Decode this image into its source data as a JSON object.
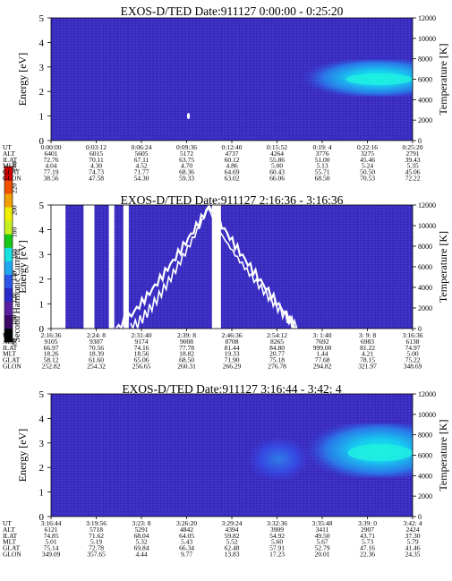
{
  "figure": {
    "colorbar": {
      "title": "Second Harmonic Current",
      "ticks": [
        "80",
        "100",
        "120",
        "140",
        "160",
        "180",
        "200",
        "220",
        "240"
      ],
      "colors": [
        "#000000",
        "#3a0a66",
        "#5a1fa0",
        "#2a2ac8",
        "#2f55e6",
        "#1fa8f0",
        "#18e0e0",
        "#18c818",
        "#c8f020",
        "#f0f000",
        "#f0a000",
        "#f05000",
        "#e00000"
      ]
    },
    "panels": [
      {
        "title": "EXOS-D/TED   Date:911127  0:00:00 - 0:25:20",
        "ylabel": "Energy [eV]",
        "yticks": [
          "0",
          "1",
          "2",
          "3",
          "4",
          "5"
        ],
        "y2label": "Temperature [K]",
        "y2ticks": [
          "0",
          "2000",
          "4000",
          "6000",
          "8000",
          "10000",
          "12000"
        ],
        "rows": [
          {
            "label": "UT",
            "values": [
              "0:00:00",
              "0:03:12",
              "0:06:24",
              "0:09:36",
              "0:12:40",
              "0:15:52",
              "0:19: 4",
              "0:22:16",
              "0:25:20"
            ]
          },
          {
            "label": "ALT",
            "values": [
              "6401",
              "6015",
              "5605",
              "5172",
              "4737",
              "4264",
              "3776",
              "3275",
              "2791"
            ]
          },
          {
            "label": "ILAT",
            "values": [
              "72.76",
              "70.11",
              "67.11",
              "63.75",
              "60.12",
              "55.86",
              "51.00",
              "45.46",
              "39.43"
            ]
          },
          {
            "label": "MLT",
            "values": [
              "4.04",
              "4.30",
              "4.52",
              "4.70",
              "4.86",
              "5.00",
              "5.13",
              "5.24",
              "5.35"
            ]
          },
          {
            "label": "GLAT",
            "values": [
              "77.19",
              "74.73",
              "71.77",
              "68.36",
              "64.69",
              "60.43",
              "55.71",
              "50.50",
              "45.06"
            ]
          },
          {
            "label": "GLON",
            "values": [
              "38.56",
              "47.58",
              "54.30",
              "59.33",
              "63.02",
              "66.06",
              "68.50",
              "70.53",
              "72.22"
            ]
          }
        ]
      },
      {
        "title": "EXOS-D/TED   Date:911127  2:16:36 - 3:16:36",
        "ylabel": "Energy [eV]",
        "yticks": [
          "0",
          "1",
          "2",
          "3",
          "4",
          "5"
        ],
        "y2label": "Temperature [K]",
        "y2ticks": [
          "0",
          "2000",
          "4000",
          "6000",
          "8000",
          "10000",
          "12000"
        ],
        "rows": [
          {
            "label": "UT",
            "values": [
              "2:16:36",
              "2:24: 8",
              "2:31:40",
              "2:39: 8",
              "2:46:36",
              "2:54:12",
              "3: 1:40",
              "3: 9: 8",
              "3:16:36"
            ]
          },
          {
            "label": "ALT",
            "values": [
              "9105",
              "9307",
              "9174",
              "9008",
              "8708",
              "8265",
              "7692",
              "6983",
              "6138"
            ]
          },
          {
            "label": "ILAT",
            "values": [
              "66.97",
              "70.56",
              "74.16",
              "77.78",
              "81.44",
              "84.80",
              "999.00",
              "81.22",
              "74.97"
            ]
          },
          {
            "label": "MLT",
            "values": [
              "18.26",
              "18.39",
              "18.56",
              "18.82",
              "19.33",
              "20.77",
              "1.44",
              "4.21",
              "5.00"
            ]
          },
          {
            "label": "GLAT",
            "values": [
              "58.12",
              "61.60",
              "65.06",
              "68.50",
              "71.90",
              "75.18",
              "77.68",
              "78.15",
              "75.22"
            ]
          },
          {
            "label": "GLON",
            "values": [
              "252.82",
              "254.32",
              "256.65",
              "260.31",
              "266.29",
              "276.78",
              "294.82",
              "321.97",
              "348.69"
            ]
          }
        ]
      },
      {
        "title": "EXOS-D/TED   Date:911127  3:16:44 - 3:42: 4",
        "ylabel": "Energy [eV]",
        "yticks": [
          "0",
          "1",
          "2",
          "3",
          "4",
          "5"
        ],
        "y2label": "Temperature [K]",
        "y2ticks": [
          "0",
          "2000",
          "4000",
          "6000",
          "8000",
          "10000",
          "12000"
        ],
        "rows": [
          {
            "label": "UT",
            "values": [
              "3:16:44",
              "3:19:56",
              "3:23: 8",
              "3:26:20",
              "3:29:24",
              "3:32:36",
              "3:35:48",
              "3:39: 0",
              "3:42: 4"
            ]
          },
          {
            "label": "ALT",
            "values": [
              "6121",
              "5718",
              "5291",
              "4842",
              "4394",
              "3909",
              "3411",
              "2907",
              "2424"
            ]
          },
          {
            "label": "ILAT",
            "values": [
              "74.85",
              "71.62",
              "68.04",
              "64.05",
              "59.82",
              "54.92",
              "49.50",
              "43.71",
              "37.30"
            ]
          },
          {
            "label": "MLT",
            "values": [
              "5.01",
              "5.19",
              "5.32",
              "5.43",
              "5.52",
              "5.60",
              "5.67",
              "5.73",
              "5.79"
            ]
          },
          {
            "label": "GLAT",
            "values": [
              "75.14",
              "72.78",
              "69.84",
              "66.34",
              "62.48",
              "57.91",
              "52.79",
              "47.16",
              "41.46"
            ]
          },
          {
            "label": "GLON",
            "values": [
              "349.09",
              "357.65",
              "4.44",
              "9.77",
              "13.83",
              "17.23",
              "20.01",
              "22.36",
              "24.35"
            ]
          }
        ]
      }
    ]
  },
  "chart_data": [
    {
      "type": "heatmap",
      "title": "EXOS-D/TED   Date:911127  0:00:00 - 0:25:20",
      "xlabel": "UT",
      "ylabel": "Energy [eV]",
      "y2label": "Temperature [K]",
      "ylim": [
        0,
        5
      ],
      "y2lim": [
        0,
        12000
      ],
      "x": [
        "0:00:00",
        "0:03:12",
        "0:06:24",
        "0:09:36",
        "0:12:40",
        "0:15:52",
        "0:19: 4",
        "0:22:16",
        "0:25:20"
      ],
      "grid": false,
      "features": [
        {
          "kind": "background",
          "level": "low"
        },
        {
          "kind": "band",
          "x_from": 0.67,
          "x_to": 1.0,
          "y_from": 1.8,
          "y_to": 3.3,
          "peak_y": 2.5,
          "level": "high"
        },
        {
          "kind": "spot",
          "x": 0.38,
          "y": 1.0,
          "level": "white"
        }
      ]
    },
    {
      "type": "heatmap",
      "title": "EXOS-D/TED   Date:911127  2:16:36 - 3:16:36",
      "xlabel": "UT",
      "ylabel": "Energy [eV]",
      "y2label": "Temperature [K]",
      "ylim": [
        0,
        5
      ],
      "y2lim": [
        0,
        12000
      ],
      "x": [
        "2:16:36",
        "2:24: 8",
        "2:31:40",
        "2:39: 8",
        "2:46:36",
        "2:54:12",
        "3: 1:40",
        "3: 9: 8",
        "3:16:36"
      ],
      "grid": false,
      "features": [
        {
          "kind": "background",
          "level": "low"
        },
        {
          "kind": "gap",
          "x_from": 0.0,
          "x_to": 0.04
        },
        {
          "kind": "gap",
          "x_from": 0.09,
          "x_to": 0.12
        },
        {
          "kind": "gap",
          "x_from": 0.16,
          "x_to": 0.175
        },
        {
          "kind": "gap",
          "x_from": 0.2,
          "x_to": 0.215
        },
        {
          "kind": "gap",
          "x_from": 0.445,
          "x_to": 0.47
        },
        {
          "kind": "cutoff",
          "x_from": 0.18,
          "x_to": 0.68,
          "peak_x": 0.44,
          "peak_y": 5.0
        }
      ]
    },
    {
      "type": "heatmap",
      "title": "EXOS-D/TED   Date:911127  3:16:44 - 3:42: 4",
      "xlabel": "UT",
      "ylabel": "Energy [eV]",
      "y2label": "Temperature [K]",
      "ylim": [
        0,
        5
      ],
      "y2lim": [
        0,
        12000
      ],
      "x": [
        "3:16:44",
        "3:19:56",
        "3:23: 8",
        "3:26:20",
        "3:29:24",
        "3:32:36",
        "3:35:48",
        "3:39: 0",
        "3:42: 4"
      ],
      "grid": false,
      "features": [
        {
          "kind": "background",
          "level": "low"
        },
        {
          "kind": "band",
          "x_from": 0.68,
          "x_to": 1.0,
          "y_from": 1.6,
          "y_to": 3.8,
          "peak_y": 2.6,
          "level": "high"
        },
        {
          "kind": "band",
          "x_from": 0.55,
          "x_to": 0.68,
          "y_from": 1.5,
          "y_to": 3.2,
          "peak_y": 2.3,
          "level": "medium"
        }
      ]
    }
  ]
}
